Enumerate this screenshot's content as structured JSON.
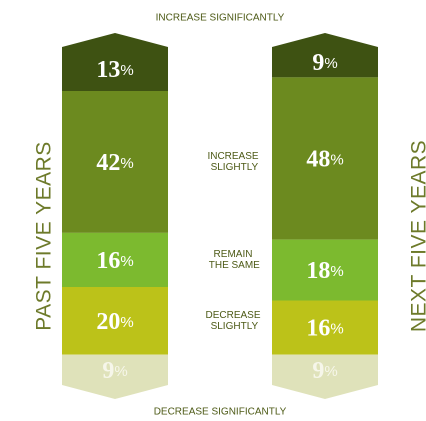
{
  "chart_data": {
    "type": "bar",
    "stacked": true,
    "categories": [
      "PAST FIVE YEARS",
      "NEXT FIVE YEARS"
    ],
    "series": [
      {
        "name": "INCREASE SIGNIFICANTLY",
        "color": "#3e5212",
        "values": [
          13,
          9
        ],
        "value_labels": [
          "13%",
          "9%"
        ]
      },
      {
        "name": "INCREASE SLIGHTLY",
        "color": "#6c8a1f",
        "values": [
          42,
          48
        ],
        "value_labels": [
          "42%",
          "48%"
        ]
      },
      {
        "name": "REMAIN THE SAME",
        "color": "#7cba2f",
        "values": [
          16,
          18
        ],
        "value_labels": [
          "16%",
          "18%"
        ]
      },
      {
        "name": "DECREASE SLIGHTLY",
        "color": "#bcc219",
        "values": [
          20,
          16
        ],
        "value_labels": [
          "20%",
          "16%"
        ]
      },
      {
        "name": "DECREASE SIGNIFICANTLY",
        "color": "#dfe2ba",
        "values": [
          9,
          9
        ],
        "value_labels": [
          "9%",
          "9%"
        ]
      }
    ]
  }
}
